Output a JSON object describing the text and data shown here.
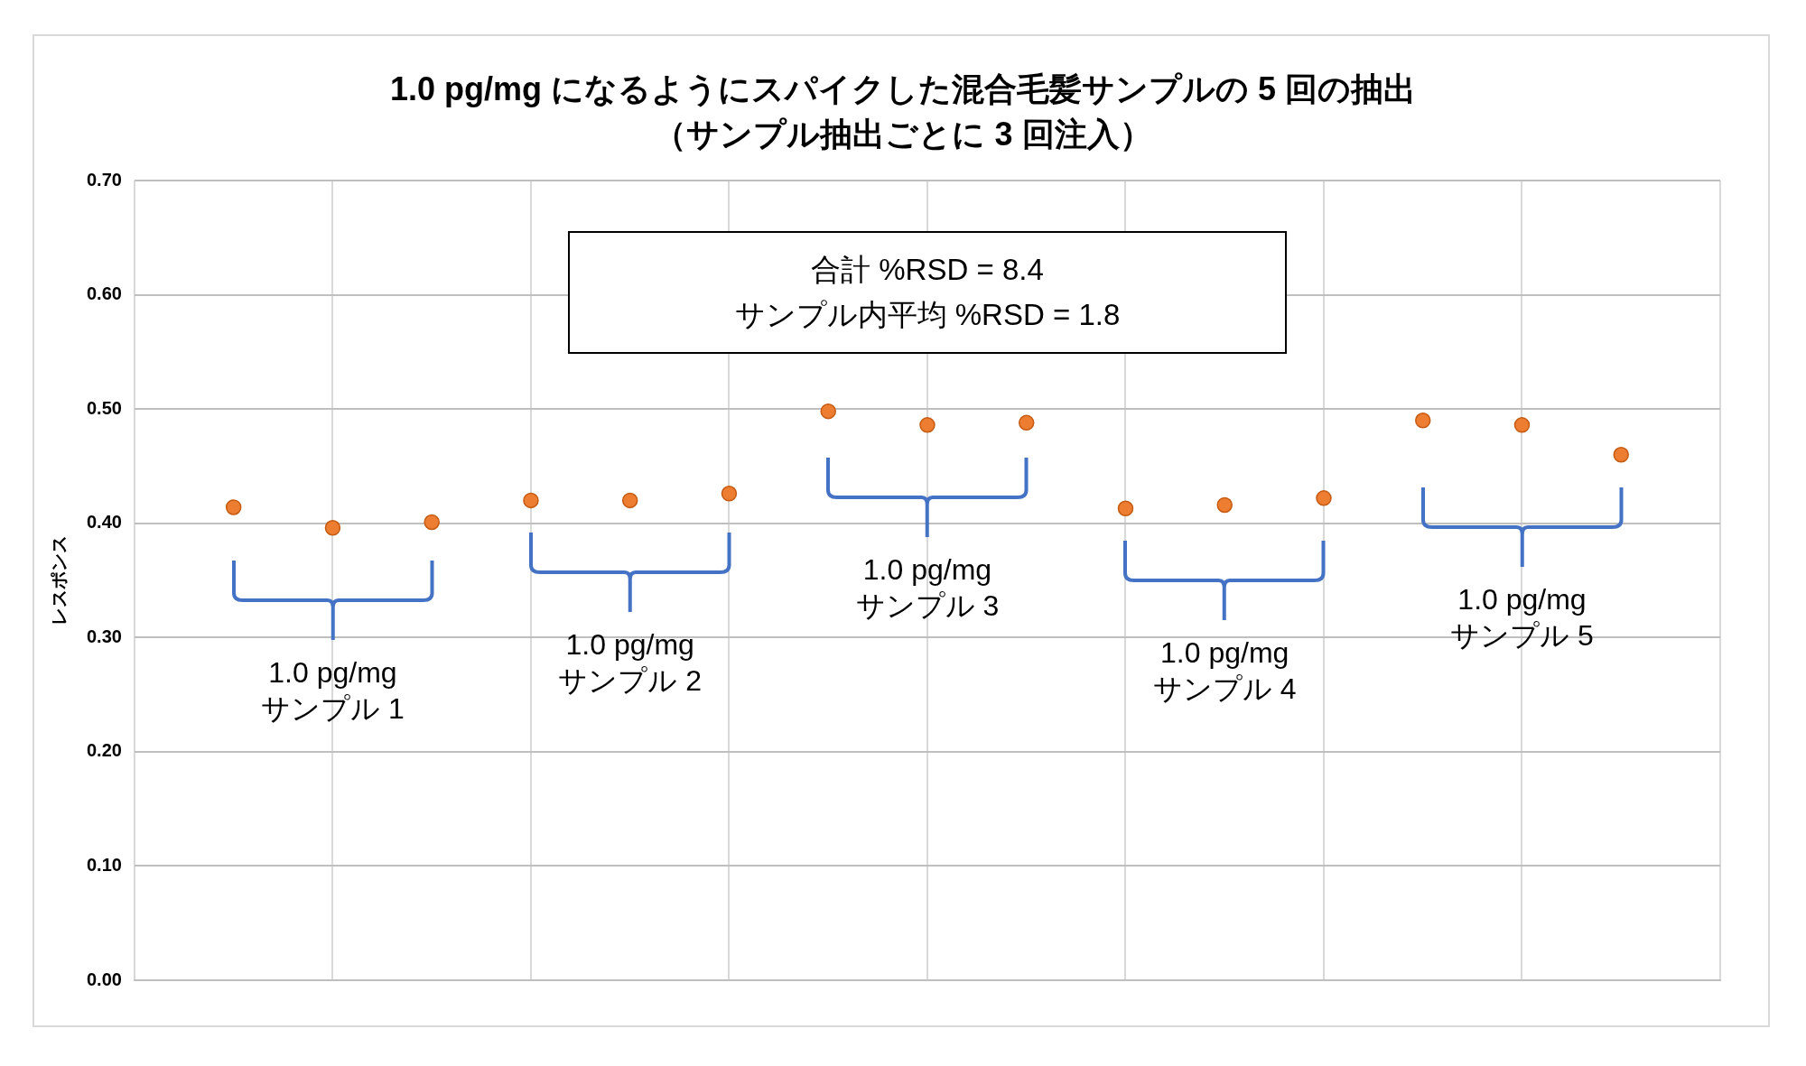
{
  "chart_data": {
    "type": "scatter",
    "title": "1.0 pg/mg になるようにスパイクした混合毛髪サンプルの 5 回の抽出（サンプル抽出ごとに 3 回注入）",
    "ylabel": "レスポンス",
    "categories": [
      null,
      null,
      null,
      null,
      null,
      null,
      null,
      null,
      null,
      null,
      null,
      null,
      null,
      null,
      null
    ],
    "series": [
      {
        "color": "#ed7d31",
        "values": [
          0.414,
          0.396,
          0.401,
          0.42,
          0.42,
          0.426,
          0.498,
          0.486,
          0.488,
          0.413,
          0.416,
          0.422,
          0.49,
          0.486,
          0.46
        ]
      }
    ],
    "ylim": [
      0,
      0.7
    ],
    "yticks": [
      {
        "value": 0,
        "label": "0.00"
      },
      {
        "value": 0.1,
        "label": "0.10"
      },
      {
        "value": 0.2,
        "label": "0.20"
      },
      {
        "value": 0.3,
        "label": "0.30"
      },
      {
        "value": 0.4,
        "label": "0.40"
      },
      {
        "value": 0.5,
        "label": "0.50"
      },
      {
        "value": 0.6,
        "label": "0.60"
      },
      {
        "value": 0.7,
        "label": "0.70"
      }
    ],
    "tick_labels": "y",
    "grid": true,
    "legend": false,
    "marker": "circle",
    "annotations": [
      "合計 %RSD = 8.4\nサンプル内平均 %RSD = 1.8",
      "1.0 pg/mg\nサンプル 1",
      "1.0 pg/mg\nサンプル 2",
      "1.0 pg/mg\nサンプル 3",
      "1.0 pg/mg\nサンプル 4",
      "1.0 pg/mg\nサンプル 5"
    ]
  }
}
